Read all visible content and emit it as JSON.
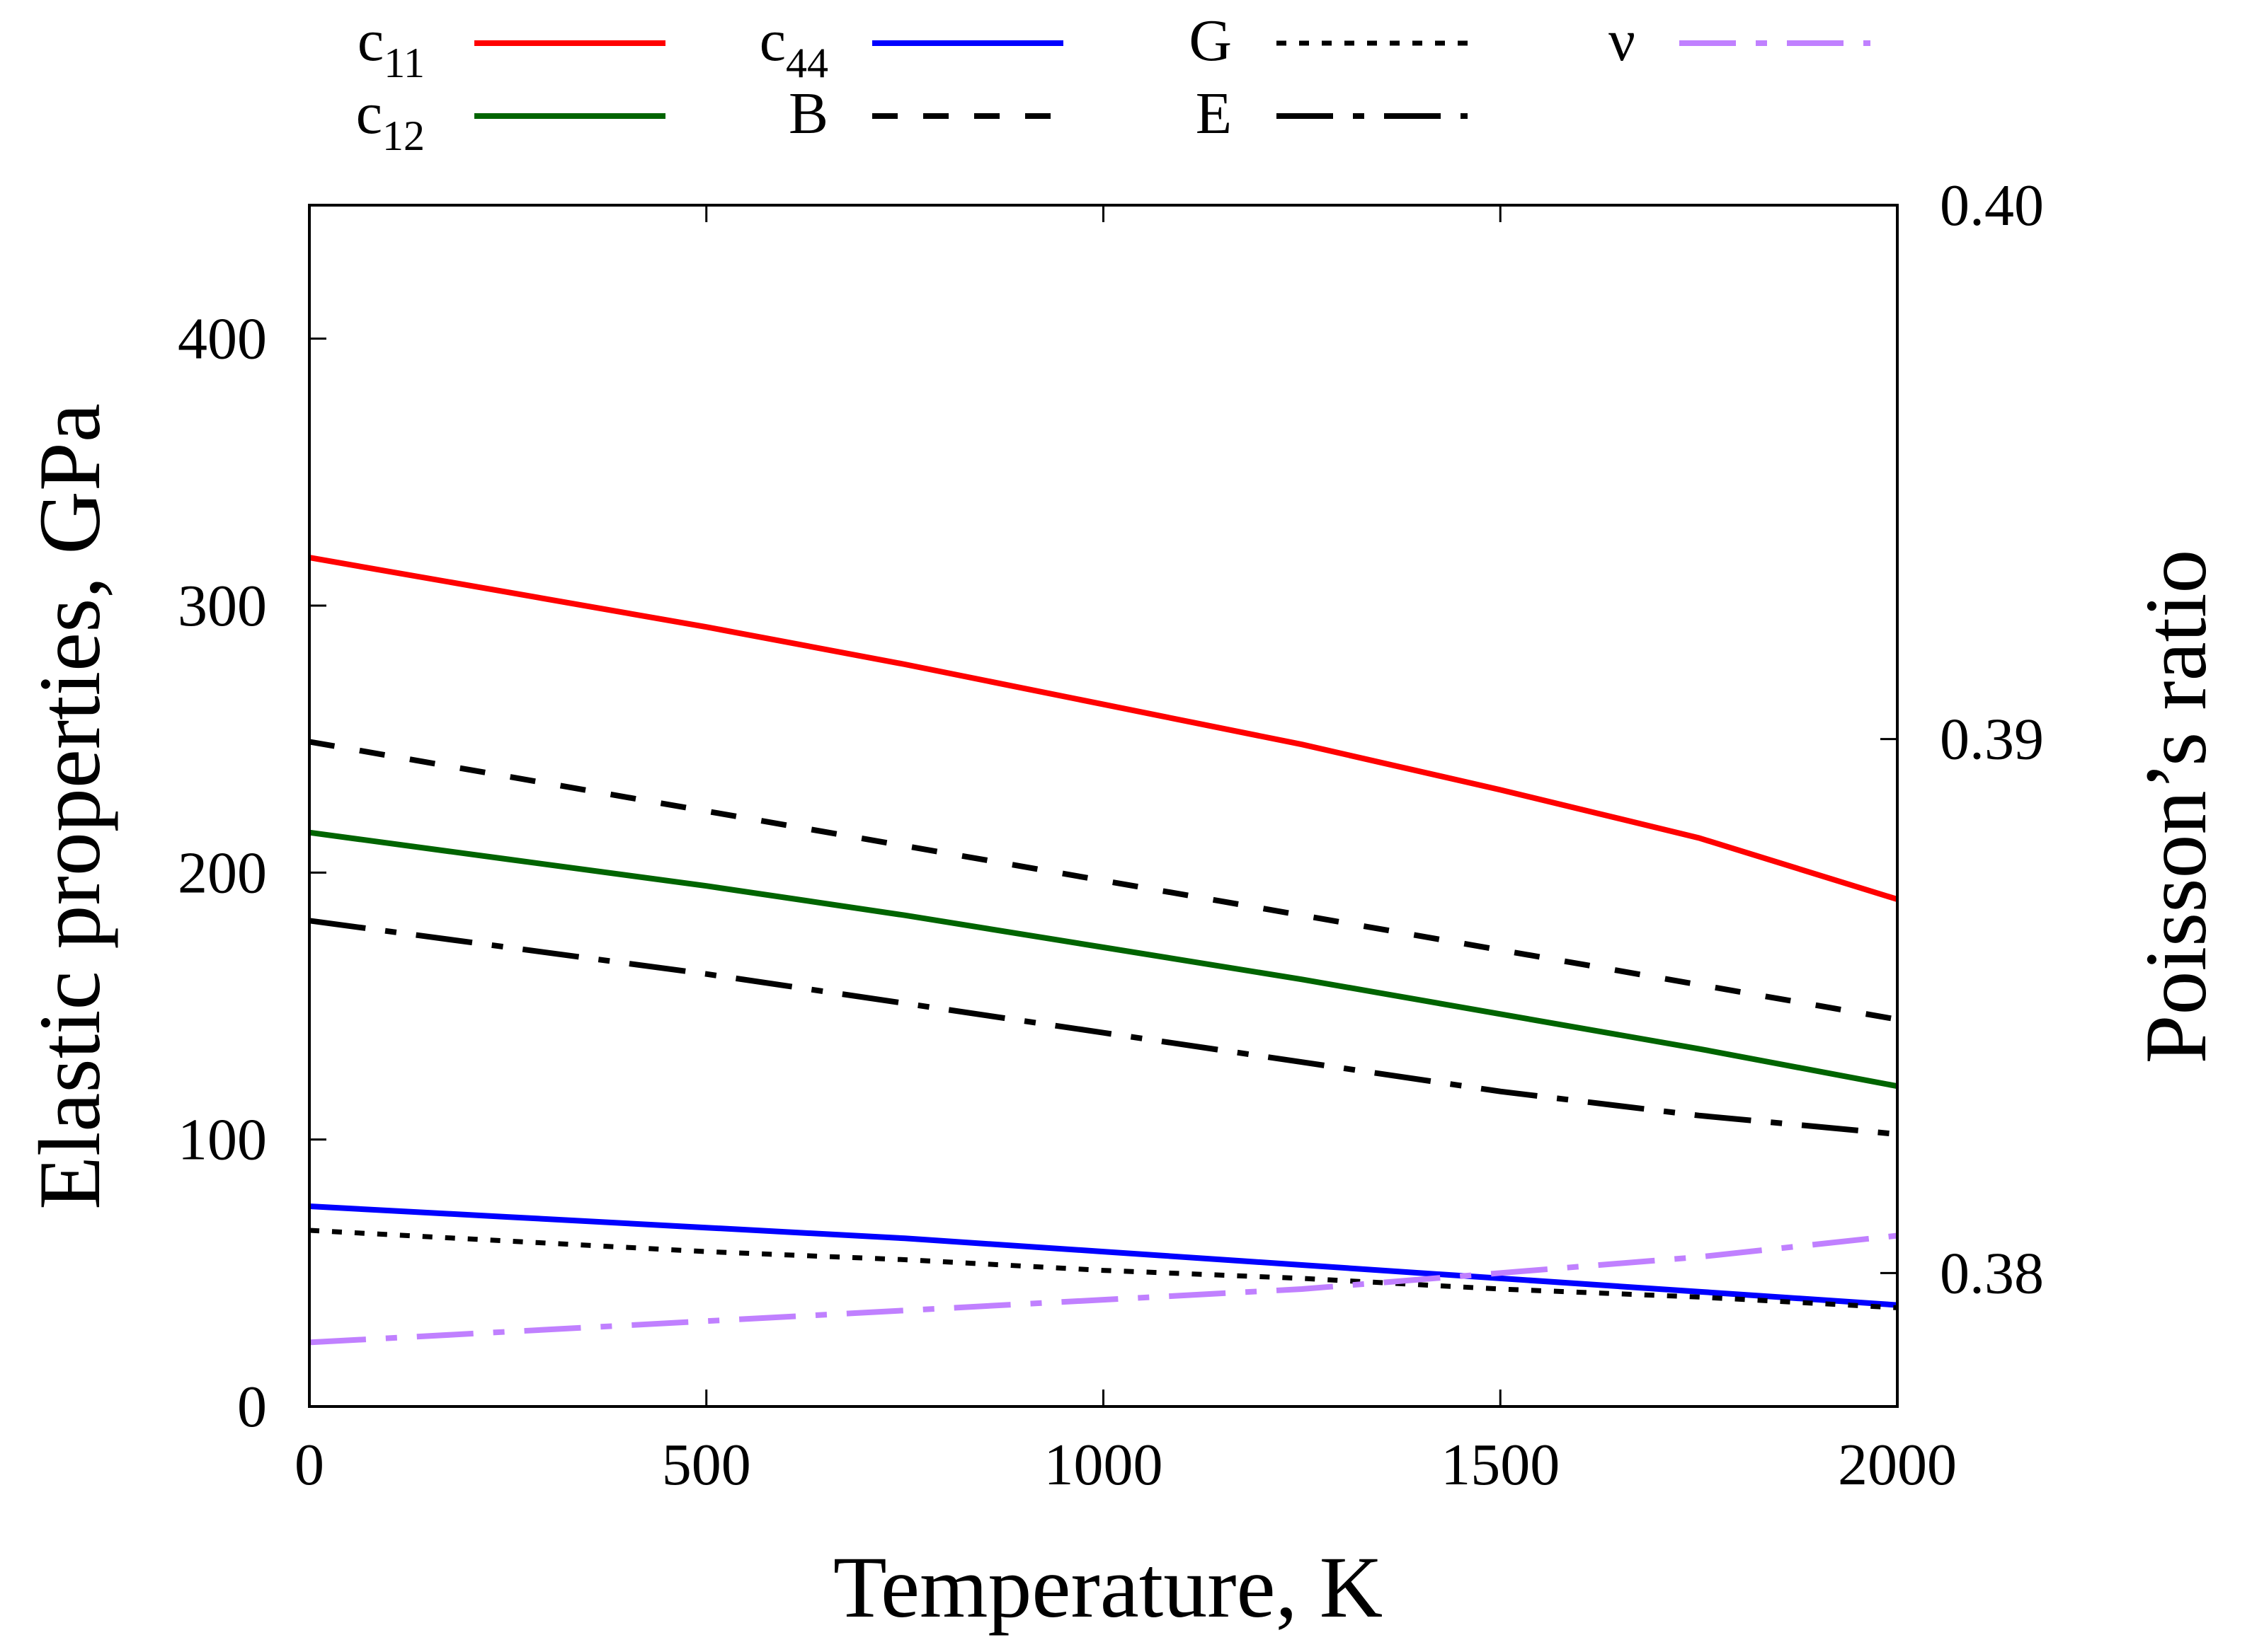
{
  "chart_data": {
    "type": "line",
    "xlabel": "Temperature, K",
    "ylabel": "Elastic properties, GPa",
    "y2label": "Poisson’s ratio",
    "xlim": [
      0,
      2000
    ],
    "ylim": [
      0,
      450
    ],
    "y2lim": [
      0.3775,
      0.4
    ],
    "xticks": [
      0,
      500,
      1000,
      1500,
      2000
    ],
    "yticks": [
      0,
      100,
      200,
      300,
      400
    ],
    "y2ticks": [
      0.38,
      0.39,
      0.4
    ],
    "xtick_labels": [
      "0",
      "500",
      "1000",
      "1500",
      "2000"
    ],
    "ytick_labels": [
      "0",
      "100",
      "200",
      "300",
      "400"
    ],
    "y2tick_labels": [
      "0.38",
      "0.39",
      "0.40"
    ],
    "grid": false,
    "legend_position": "top",
    "x": [
      0,
      250,
      500,
      750,
      1000,
      1250,
      1500,
      1750,
      2000
    ],
    "series": [
      {
        "name": "c11",
        "base": "c",
        "sub": "11",
        "color": "#ff0000",
        "dash": "solid",
        "axis": "left",
        "values": [
          318,
          305,
          292,
          278,
          263,
          248,
          231,
          213,
          190
        ]
      },
      {
        "name": "c12",
        "base": "c",
        "sub": "12",
        "color": "#006400",
        "dash": "solid",
        "axis": "left",
        "values": [
          215,
          205,
          195,
          184,
          172,
          160,
          147,
          134,
          120
        ]
      },
      {
        "name": "c44",
        "base": "c",
        "sub": "44",
        "color": "#0000ff",
        "dash": "solid",
        "axis": "left",
        "values": [
          75,
          71,
          67,
          63,
          58,
          53,
          48,
          43,
          38
        ]
      },
      {
        "name": "B",
        "base": "B",
        "sub": "",
        "color": "#000000",
        "dash": "dashed",
        "axis": "left",
        "values": [
          249,
          236,
          223,
          210,
          197,
          184,
          171,
          158,
          145
        ]
      },
      {
        "name": "G",
        "base": "G",
        "sub": "",
        "color": "#000000",
        "dash": "dotted",
        "axis": "left",
        "values": [
          66,
          62,
          58,
          55,
          51,
          48,
          44,
          41,
          37
        ]
      },
      {
        "name": "E",
        "base": "E",
        "sub": "",
        "color": "#000000",
        "dash": "dashdot",
        "axis": "left",
        "values": [
          182,
          172,
          162,
          151,
          140,
          129,
          118,
          109,
          102
        ]
      },
      {
        "name": "ν",
        "base": "ν",
        "sub": "",
        "color": "#c080ff",
        "dash": "dashdot",
        "axis": "right",
        "values": [
          0.3787,
          0.3789,
          0.3791,
          0.3793,
          0.3795,
          0.3797,
          0.38,
          0.3803,
          0.3807
        ]
      }
    ]
  }
}
